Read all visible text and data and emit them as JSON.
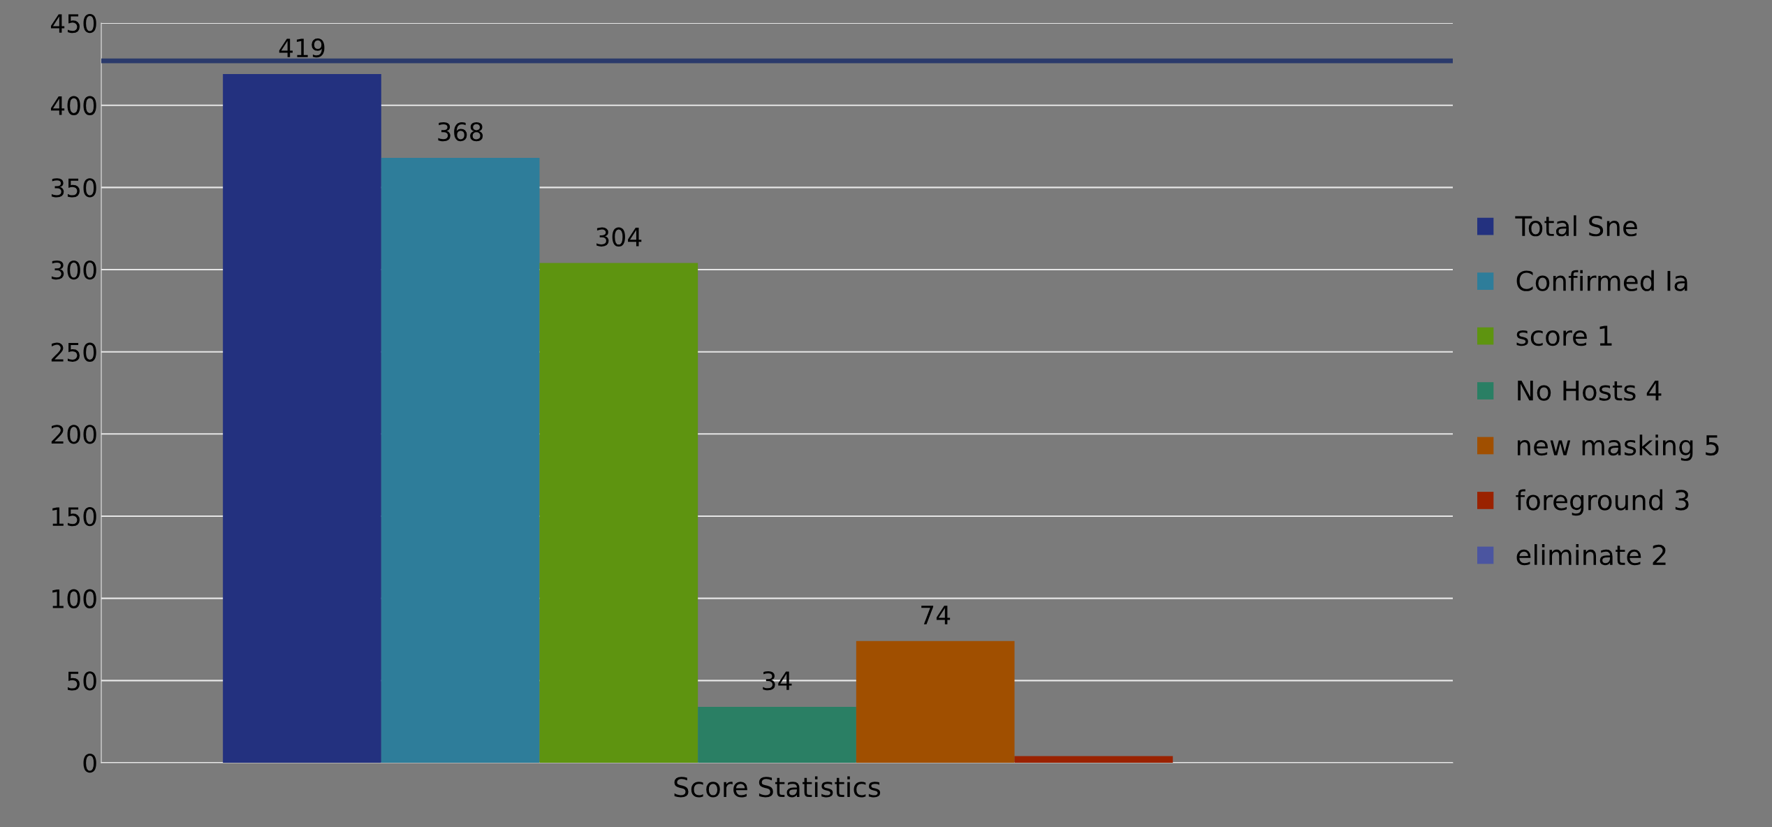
{
  "chart_data": {
    "type": "bar",
    "categories": [
      "Score Statistics"
    ],
    "series": [
      {
        "name": "Total Sne",
        "color": "#23317f",
        "values": [
          419
        ],
        "value_labels": [
          "419"
        ]
      },
      {
        "name": "Confirmed Ia",
        "color": "#2e7d9a",
        "values": [
          368
        ],
        "value_labels": [
          "368"
        ]
      },
      {
        "name": "score 1",
        "color": "#5e9410",
        "values": [
          304
        ],
        "value_labels": [
          "304"
        ]
      },
      {
        "name": "No Hosts 4",
        "color": "#2a7f64",
        "values": [
          34
        ],
        "value_labels": [
          "34"
        ]
      },
      {
        "name": "new masking 5",
        "color": "#a04f00",
        "values": [
          74
        ],
        "value_labels": [
          "74"
        ]
      },
      {
        "name": "foreground 3",
        "color": "#9a2200",
        "values": [
          4
        ],
        "value_labels": [
          null
        ]
      },
      {
        "name": "eliminate 2",
        "color": "#4b55a0",
        "values": [
          0
        ],
        "value_labels": [
          null
        ]
      }
    ],
    "ylim": [
      0,
      450
    ],
    "yticks": [
      0,
      50,
      100,
      150,
      200,
      250,
      300,
      350,
      400,
      450
    ],
    "grid": "y",
    "legend": "right",
    "ref_lines": [
      {
        "axis": "y",
        "value": 427,
        "color": "#2b3a6b"
      }
    ]
  }
}
